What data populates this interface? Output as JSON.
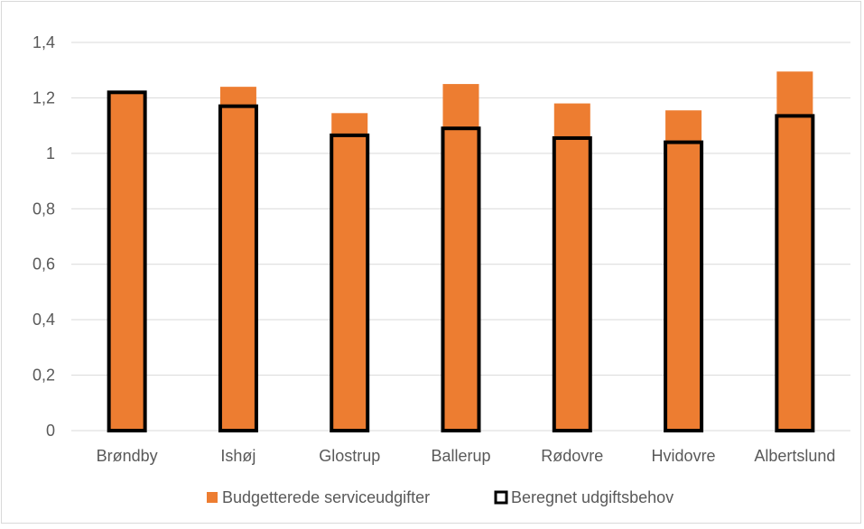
{
  "chart_data": {
    "type": "bar",
    "title": "",
    "xlabel": "",
    "ylabel": "",
    "ylim": [
      0,
      1.4
    ],
    "yticks": [
      "0",
      "0,2",
      "0,4",
      "0,6",
      "0,8",
      "1",
      "1,2",
      "1,4"
    ],
    "ytick_values": [
      0,
      0.2,
      0.4,
      0.6,
      0.8,
      1.0,
      1.2,
      1.4
    ],
    "grid": true,
    "legend_position": "bottom",
    "categories": [
      "Brøndby",
      "Ishøj",
      "Glostrup",
      "Ballerup",
      "Rødovre",
      "Hvidovre",
      "Albertslund"
    ],
    "series": [
      {
        "name": "Budgetterede serviceudgifter",
        "style": "filled",
        "color": "#ed7d31",
        "values": [
          1.215,
          1.24,
          1.145,
          1.25,
          1.18,
          1.155,
          1.295
        ]
      },
      {
        "name": "Beregnet udgiftsbehov",
        "style": "outline",
        "color": "#000000",
        "values": [
          1.22,
          1.17,
          1.065,
          1.09,
          1.055,
          1.04,
          1.135
        ]
      }
    ]
  }
}
